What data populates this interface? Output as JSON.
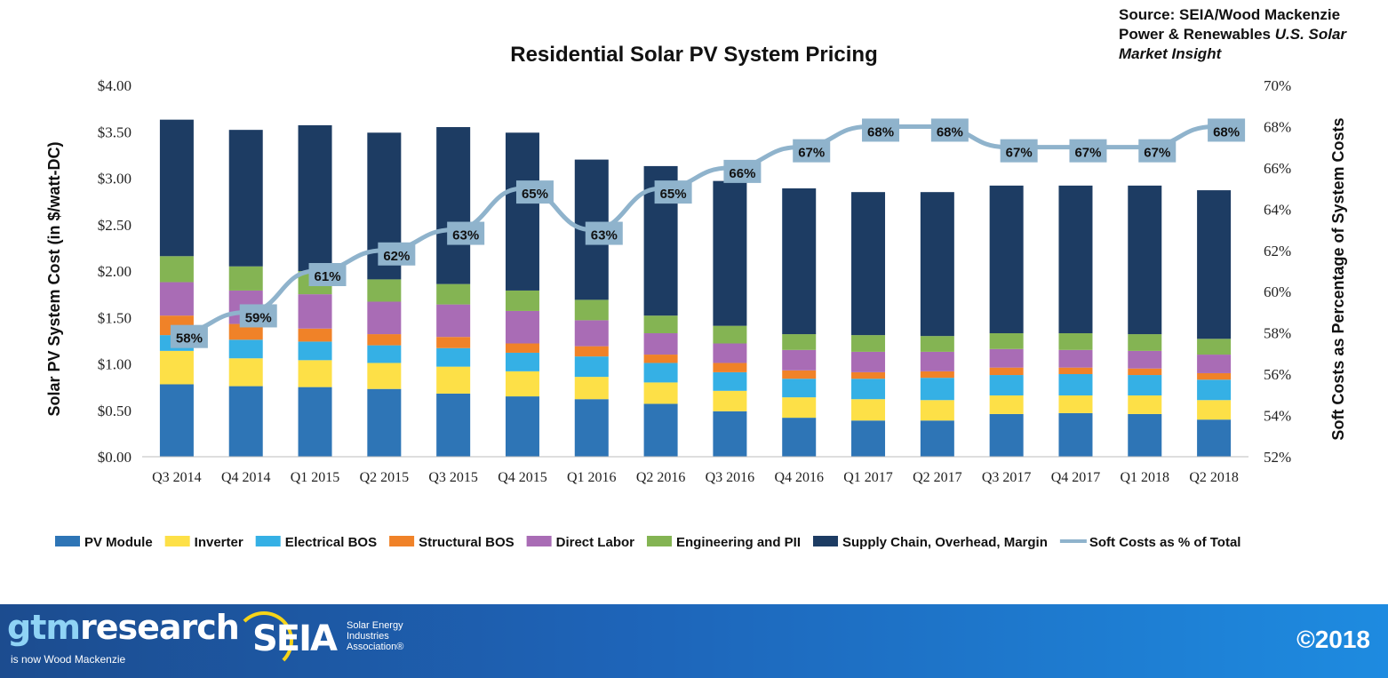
{
  "source": {
    "line1": "Source: SEIA/Wood Mackenzie",
    "line2_prefix": "Power & Renewables ",
    "line2_italic": "U.S. Solar",
    "line3_italic": "Market Insight"
  },
  "footer": {
    "gtm_prefix": "gtm",
    "gtm_word": "research",
    "gtm_sub": "is now Wood Mackenzie",
    "seia_word": "SEIA",
    "seia_sub_1": "Solar Energy",
    "seia_sub_2": "Industries",
    "seia_sub_3": "Association®",
    "copyright": "©2018"
  },
  "chart_data": {
    "type": "bar",
    "stacked": true,
    "title": "Residential Solar PV System Pricing",
    "ylabel": "Solar PV System Cost (in $/watt-DC)",
    "y2label": "Soft Costs as Percentage of System Costs",
    "ylim": [
      0,
      4
    ],
    "y2lim": [
      52,
      70
    ],
    "yticks": [
      "$0.00",
      "$0.50",
      "$1.00",
      "$1.50",
      "$2.00",
      "$2.50",
      "$3.00",
      "$3.50",
      "$4.00"
    ],
    "y2ticks": [
      "52%",
      "54%",
      "56%",
      "58%",
      "60%",
      "62%",
      "64%",
      "66%",
      "68%",
      "70%"
    ],
    "legend_position": "bottom",
    "categories": [
      "Q3 2014",
      "Q4 2014",
      "Q1 2015",
      "Q2 2015",
      "Q3 2015",
      "Q4 2015",
      "Q1 2016",
      "Q2 2016",
      "Q3 2016",
      "Q4 2016",
      "Q1 2017",
      "Q2 2017",
      "Q3 2017",
      "Q4 2017",
      "Q1 2018",
      "Q2 2018"
    ],
    "series": [
      {
        "name": "PV Module",
        "color": "#2e75b6",
        "values": [
          0.78,
          0.76,
          0.75,
          0.73,
          0.68,
          0.65,
          0.62,
          0.57,
          0.49,
          0.42,
          0.39,
          0.39,
          0.46,
          0.47,
          0.46,
          0.4
        ]
      },
      {
        "name": "Inverter",
        "color": "#fde047",
        "values": [
          0.36,
          0.3,
          0.29,
          0.28,
          0.29,
          0.27,
          0.24,
          0.23,
          0.22,
          0.22,
          0.23,
          0.22,
          0.2,
          0.19,
          0.2,
          0.21
        ]
      },
      {
        "name": "Electrical BOS",
        "color": "#35b0e5",
        "values": [
          0.17,
          0.2,
          0.2,
          0.19,
          0.2,
          0.2,
          0.22,
          0.21,
          0.2,
          0.2,
          0.22,
          0.24,
          0.22,
          0.23,
          0.22,
          0.22
        ]
      },
      {
        "name": "Structural BOS",
        "color": "#f08228",
        "values": [
          0.21,
          0.17,
          0.14,
          0.12,
          0.12,
          0.1,
          0.11,
          0.09,
          0.1,
          0.09,
          0.07,
          0.07,
          0.08,
          0.07,
          0.07,
          0.07
        ]
      },
      {
        "name": "Direct Labor",
        "color": "#a96cb5",
        "values": [
          0.36,
          0.36,
          0.37,
          0.35,
          0.35,
          0.35,
          0.28,
          0.23,
          0.21,
          0.22,
          0.22,
          0.21,
          0.2,
          0.19,
          0.19,
          0.2
        ]
      },
      {
        "name": "Engineering and PII",
        "color": "#84b453",
        "values": [
          0.28,
          0.26,
          0.25,
          0.24,
          0.22,
          0.22,
          0.22,
          0.19,
          0.19,
          0.17,
          0.18,
          0.17,
          0.17,
          0.18,
          0.18,
          0.17
        ]
      },
      {
        "name": "Supply Chain, Overhead, Margin",
        "color": "#1d3c63",
        "values": [
          1.47,
          1.47,
          1.57,
          1.58,
          1.69,
          1.7,
          1.51,
          1.61,
          1.56,
          1.57,
          1.54,
          1.55,
          1.59,
          1.59,
          1.6,
          1.6
        ]
      }
    ],
    "line": {
      "name": "Soft Costs as % of Total",
      "color": "#8fb3cc",
      "axis": "right",
      "values": [
        58,
        59,
        61,
        62,
        63,
        65,
        63,
        65,
        66,
        67,
        68,
        68,
        67,
        67,
        67,
        68
      ],
      "labels": [
        "58%",
        "59%",
        "61%",
        "62%",
        "63%",
        "65%",
        "63%",
        "65%",
        "66%",
        "67%",
        "68%",
        "68%",
        "67%",
        "67%",
        "67%",
        "68%"
      ]
    }
  }
}
